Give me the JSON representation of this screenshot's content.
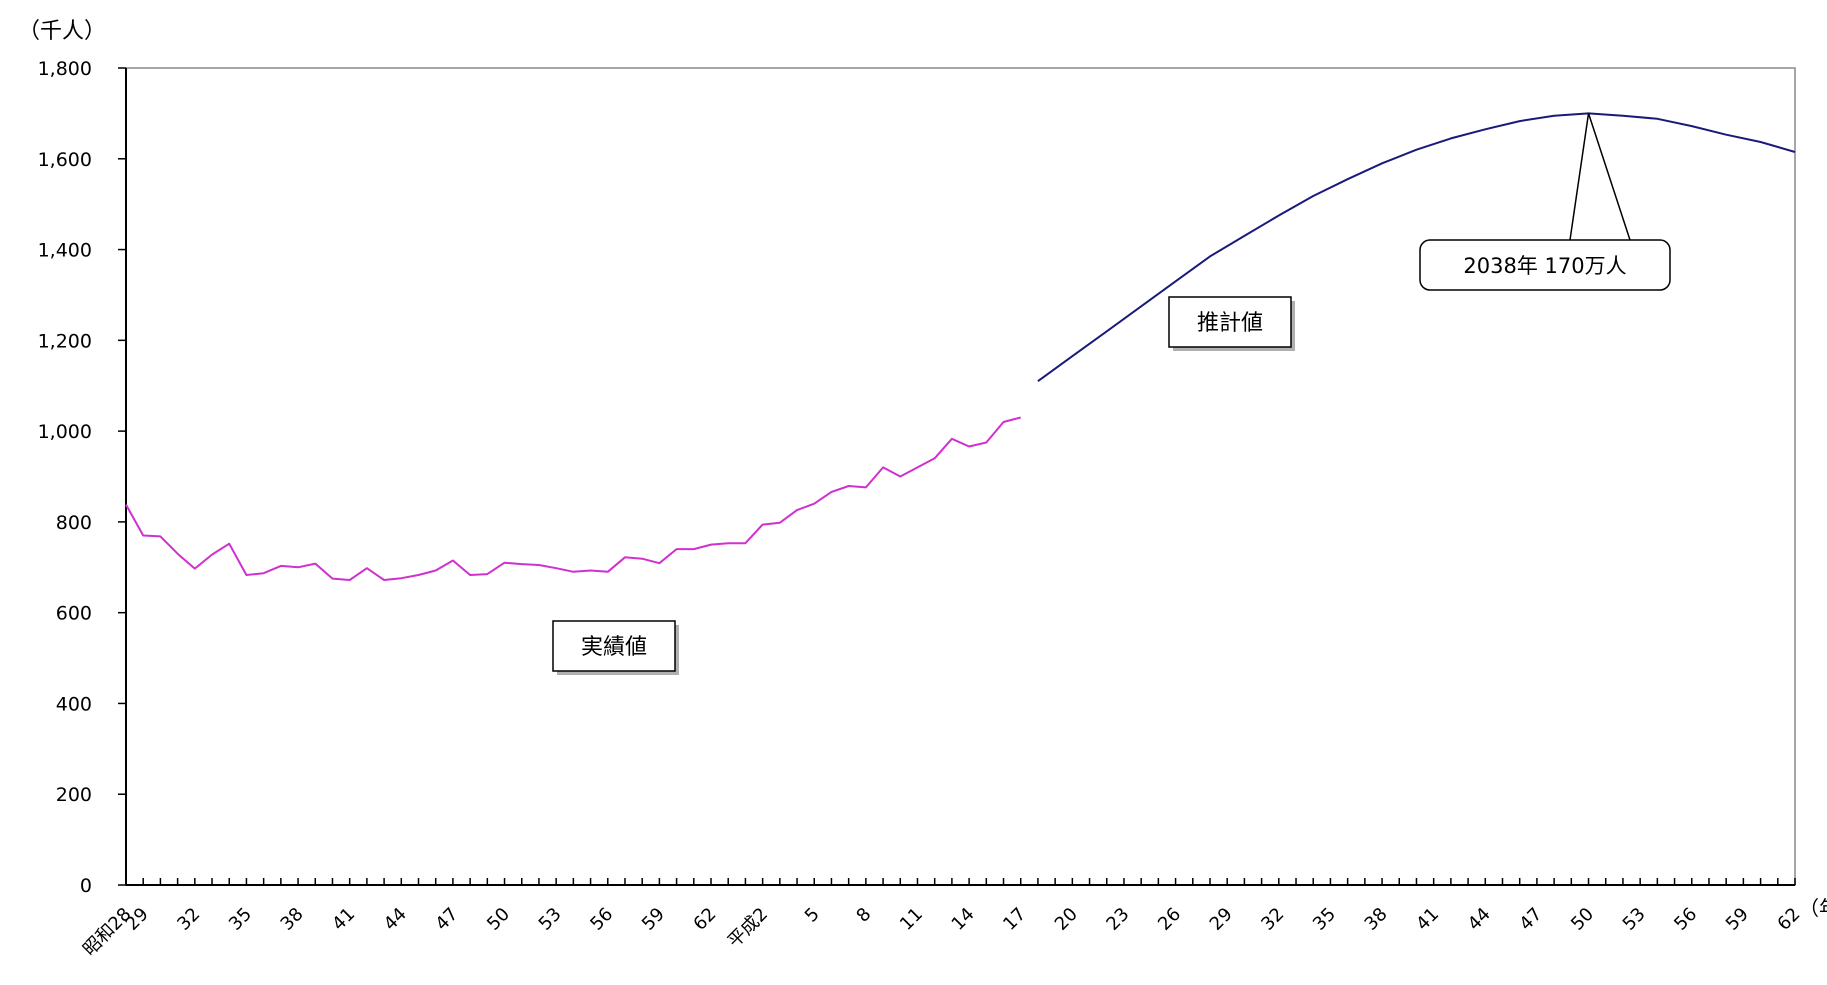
{
  "chart_data": {
    "type": "line",
    "title": "",
    "unit_label": "（千人）",
    "xlabel": "",
    "ylabel": "",
    "ylim": [
      0,
      1800
    ],
    "yticks": [
      0,
      200,
      400,
      600,
      800,
      1000,
      1200,
      1400,
      1600,
      1800
    ],
    "ytick_labels": [
      "0",
      "200",
      "400",
      "600",
      "800",
      "1,000",
      "1,200",
      "1,400",
      "1,600",
      "1,800"
    ],
    "x_range": [
      1953,
      2050
    ],
    "x_ticks": [
      {
        "year": 1953,
        "label": "昭和28"
      },
      {
        "year": 1954,
        "label": "29"
      },
      {
        "year": 1957,
        "label": "32"
      },
      {
        "year": 1960,
        "label": "35"
      },
      {
        "year": 1963,
        "label": "38"
      },
      {
        "year": 1966,
        "label": "41"
      },
      {
        "year": 1969,
        "label": "44"
      },
      {
        "year": 1972,
        "label": "47"
      },
      {
        "year": 1975,
        "label": "50"
      },
      {
        "year": 1978,
        "label": "53"
      },
      {
        "year": 1981,
        "label": "56"
      },
      {
        "year": 1984,
        "label": "59"
      },
      {
        "year": 1987,
        "label": "62"
      },
      {
        "year": 1990,
        "label": "平成2"
      },
      {
        "year": 1993,
        "label": "5"
      },
      {
        "year": 1996,
        "label": "8"
      },
      {
        "year": 1999,
        "label": "11"
      },
      {
        "year": 2002,
        "label": "14"
      },
      {
        "year": 2005,
        "label": "17"
      },
      {
        "year": 2008,
        "label": "20"
      },
      {
        "year": 2011,
        "label": "23"
      },
      {
        "year": 2014,
        "label": "26"
      },
      {
        "year": 2017,
        "label": "29"
      },
      {
        "year": 2020,
        "label": "32"
      },
      {
        "year": 2023,
        "label": "35"
      },
      {
        "year": 2026,
        "label": "38"
      },
      {
        "year": 2029,
        "label": "41"
      },
      {
        "year": 2032,
        "label": "44"
      },
      {
        "year": 2035,
        "label": "47"
      },
      {
        "year": 2038,
        "label": "50"
      },
      {
        "year": 2041,
        "label": "53"
      },
      {
        "year": 2044,
        "label": "56"
      },
      {
        "year": 2047,
        "label": "59"
      },
      {
        "year": 2050,
        "label": "62"
      }
    ],
    "x_unit_label": "（年）",
    "series": [
      {
        "name": "実績値",
        "color": "#d030d0",
        "x": [
          1953,
          1954,
          1955,
          1956,
          1957,
          1958,
          1959,
          1960,
          1961,
          1962,
          1963,
          1964,
          1965,
          1966,
          1967,
          1968,
          1969,
          1970,
          1971,
          1972,
          1973,
          1974,
          1975,
          1976,
          1977,
          1978,
          1979,
          1980,
          1981,
          1982,
          1983,
          1984,
          1985,
          1986,
          1987,
          1988,
          1989,
          1990,
          1991,
          1992,
          1993,
          1994,
          1995,
          1996,
          1997,
          1998,
          1999,
          2000,
          2001,
          2002,
          2003,
          2004,
          2005
        ],
        "y": [
          838,
          770,
          768,
          730,
          697,
          728,
          752,
          683,
          687,
          703,
          700,
          708,
          675,
          672,
          698,
          672,
          676,
          683,
          693,
          715,
          683,
          685,
          710,
          707,
          705,
          698,
          690,
          693,
          690,
          722,
          719,
          709,
          740,
          740,
          750,
          753,
          753,
          794,
          798,
          826,
          840,
          866,
          879,
          876,
          920,
          900,
          920,
          940,
          983,
          966,
          975,
          1020,
          1030
        ]
      },
      {
        "name": "推計値",
        "color": "#1a1a7a",
        "x": [
          2006,
          2008,
          2010,
          2012,
          2014,
          2016,
          2018,
          2020,
          2022,
          2024,
          2026,
          2028,
          2030,
          2032,
          2034,
          2036,
          2038,
          2040,
          2042,
          2044,
          2046,
          2048,
          2050
        ],
        "y": [
          1110,
          1165,
          1220,
          1275,
          1330,
          1385,
          1430,
          1475,
          1518,
          1555,
          1590,
          1620,
          1645,
          1665,
          1683,
          1695,
          1700,
          1695,
          1688,
          1672,
          1653,
          1637,
          1615
        ]
      }
    ],
    "annotations": [
      {
        "text": "実績値",
        "series": "実績値"
      },
      {
        "text": "推計値",
        "series": "推計値"
      },
      {
        "text": "2038年  170万人",
        "x": 2038,
        "y": 1700
      }
    ]
  }
}
